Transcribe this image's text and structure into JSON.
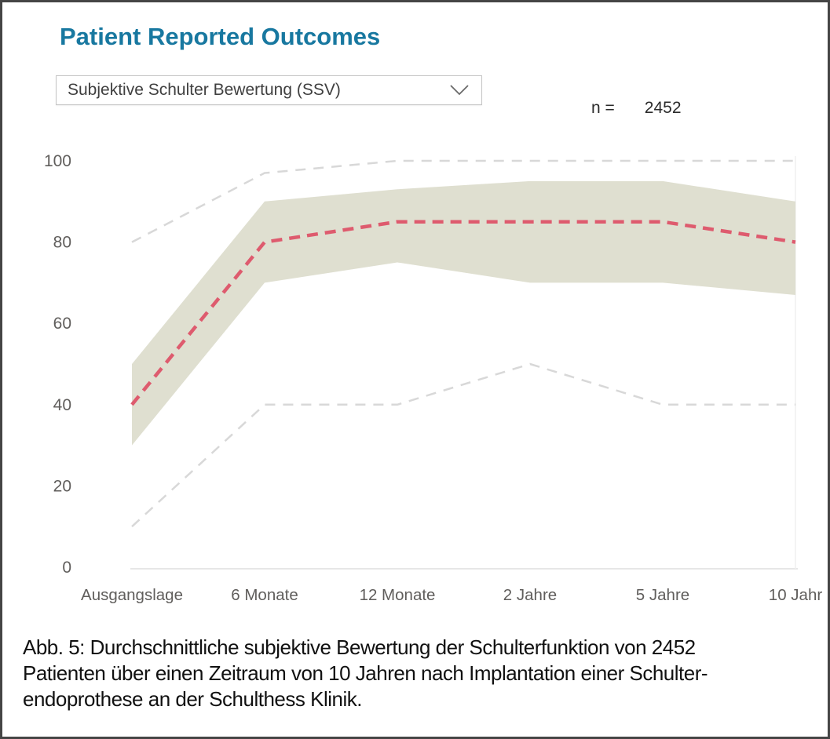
{
  "header": {
    "title": "Patient Reported Outcomes"
  },
  "dropdown": {
    "value": "Subjektive Schulter Bewertung (SSV)",
    "icon": "chevron-down"
  },
  "sample": {
    "label": "n =",
    "value": "2452"
  },
  "colors": {
    "title": "#1878A0",
    "band": "#DFDFD0",
    "mean_line": "#DE5B6E",
    "range_line": "#D8D8D8",
    "axis_text": "#605E5C",
    "axis_line": "#E7E7E7",
    "gridline": "#EFEFEF",
    "caption_text": "#111111"
  },
  "chart_data": {
    "type": "line",
    "title": "",
    "xlabel": "",
    "ylabel": "",
    "categories": [
      "Ausgangslage",
      "6 Monate",
      "12 Monate",
      "2 Jahre",
      "5 Jahre",
      "10 Jahr"
    ],
    "yticks": [
      0,
      20,
      40,
      60,
      80,
      100
    ],
    "ylim": [
      0,
      100
    ],
    "grid": "off",
    "legend": "none",
    "series": [
      {
        "name": "upper-range",
        "style": "dashed-gray",
        "values": [
          80,
          97,
          100,
          100,
          100,
          100
        ]
      },
      {
        "name": "band-top",
        "style": "band-edge",
        "values": [
          50,
          90,
          93,
          95,
          95,
          90
        ]
      },
      {
        "name": "mean",
        "style": "dashed-red",
        "values": [
          40,
          80,
          85,
          85,
          85,
          80
        ]
      },
      {
        "name": "band-bottom",
        "style": "band-edge",
        "values": [
          30,
          70,
          75,
          70,
          70,
          67
        ]
      },
      {
        "name": "lower-range",
        "style": "dashed-gray",
        "values": [
          10,
          40,
          40,
          50,
          40,
          40
        ]
      }
    ]
  },
  "caption": {
    "lines": [
      "Abb. 5: Durchschnittliche subjektive Bewertung der Schulterfunktion von 2452",
      "Patienten über einen Zeitraum von 10 Jahren nach Implantation einer Schulter-",
      "endoprothese an der Schulthess Klinik."
    ]
  }
}
